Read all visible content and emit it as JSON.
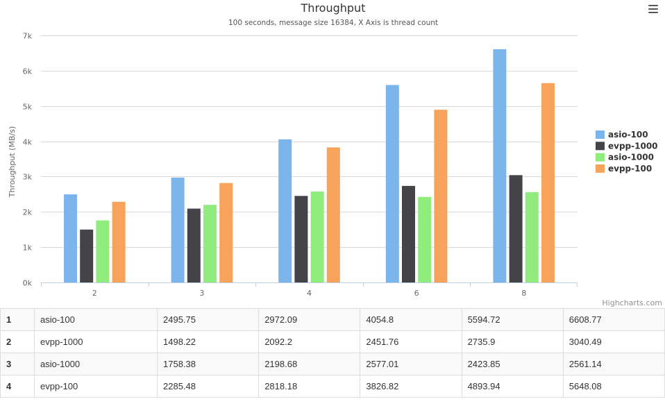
{
  "chart_data": {
    "type": "bar",
    "title": "Throughput",
    "subtitle": "100 seconds, message size 16384, X Axis is thread count",
    "xlabel": "",
    "ylabel": "Throughput (MB/s)",
    "categories": [
      "2",
      "3",
      "4",
      "6",
      "8"
    ],
    "ylim": [
      0,
      7000
    ],
    "yticks": [
      0,
      1000,
      2000,
      3000,
      4000,
      5000,
      6000,
      7000
    ],
    "ytick_labels": [
      "0k",
      "1k",
      "2k",
      "3k",
      "4k",
      "5k",
      "6k",
      "7k"
    ],
    "grid": true,
    "legend": "right",
    "series": [
      {
        "name": "asio-100",
        "color": "#7cb5ec",
        "values": [
          2495.75,
          2972.09,
          4054.8,
          5594.72,
          6608.77
        ]
      },
      {
        "name": "evpp-1000",
        "color": "#434348",
        "values": [
          1498.22,
          2092.2,
          2451.76,
          2735.9,
          3040.49
        ]
      },
      {
        "name": "asio-1000",
        "color": "#90ed7d",
        "values": [
          1758.38,
          2198.68,
          2577.01,
          2423.85,
          2561.14
        ]
      },
      {
        "name": "evpp-100",
        "color": "#f7a35c",
        "values": [
          2285.48,
          2818.18,
          3826.82,
          4893.94,
          5648.08
        ]
      }
    ],
    "credits": "Highcharts.com"
  },
  "table": {
    "rows": [
      {
        "index": "1",
        "name": "asio-100",
        "values": [
          "2495.75",
          "2972.09",
          "4054.8",
          "5594.72",
          "6608.77"
        ]
      },
      {
        "index": "2",
        "name": "evpp-1000",
        "values": [
          "1498.22",
          "2092.2",
          "2451.76",
          "2735.9",
          "3040.49"
        ]
      },
      {
        "index": "3",
        "name": "asio-1000",
        "values": [
          "1758.38",
          "2198.68",
          "2577.01",
          "2423.85",
          "2561.14"
        ]
      },
      {
        "index": "4",
        "name": "evpp-100",
        "values": [
          "2285.48",
          "2818.18",
          "3826.82",
          "4893.94",
          "5648.08"
        ]
      }
    ]
  }
}
